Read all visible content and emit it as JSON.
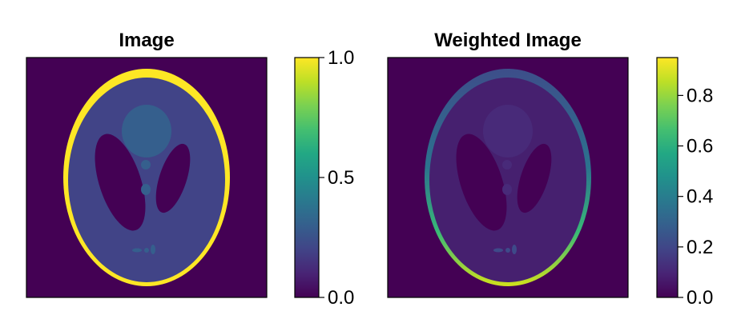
{
  "chart_data": [
    {
      "type": "heatmap",
      "title": "Image",
      "image": "shepp-logan-phantom",
      "weighted": false,
      "colormap": "viridis",
      "colorbar": {
        "range": [
          0.0,
          1.0
        ],
        "ticks": [
          0.0,
          0.5,
          1.0
        ],
        "tick_labels": [
          "0.0",
          "0.5",
          "1.0"
        ]
      },
      "regions": [
        {
          "name": "background",
          "value": 0.0
        },
        {
          "name": "skull",
          "value": 1.0
        },
        {
          "name": "brain",
          "value": 0.2
        },
        {
          "name": "ventricles",
          "value": 0.0
        },
        {
          "name": "upper-lesion",
          "value": 0.3
        },
        {
          "name": "small-features",
          "value": 0.3
        }
      ]
    },
    {
      "type": "heatmap",
      "title": "Weighted Image",
      "image": "shepp-logan-phantom-weighted",
      "weighted": true,
      "colormap": "viridis",
      "colorbar": {
        "range": [
          0.0,
          0.95
        ],
        "ticks": [
          0.0,
          0.2,
          0.4,
          0.6,
          0.8
        ],
        "tick_labels": [
          "0.0",
          "0.2",
          "0.4",
          "0.6",
          "0.8"
        ]
      },
      "regions": [
        {
          "name": "background",
          "value": 0.0
        },
        {
          "name": "skull-top",
          "value": 0.15
        },
        {
          "name": "skull-bottom",
          "value": 0.95
        },
        {
          "name": "brain",
          "value": 0.08
        },
        {
          "name": "ventricles",
          "value": 0.0
        },
        {
          "name": "upper-lesion",
          "value": 0.12
        },
        {
          "name": "small-features",
          "value": 0.13
        }
      ]
    }
  ]
}
